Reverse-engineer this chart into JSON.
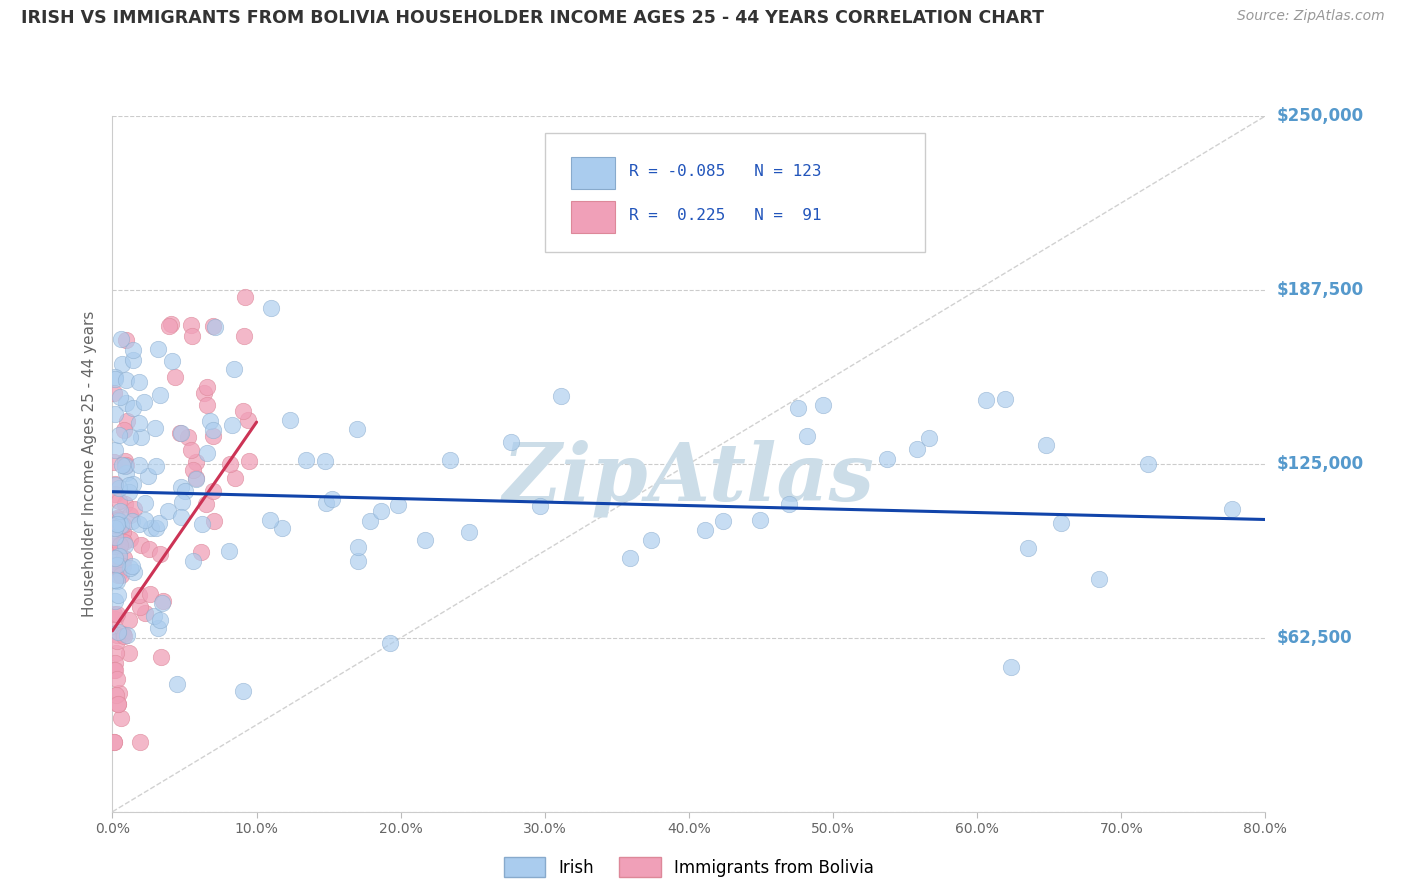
{
  "title": "IRISH VS IMMIGRANTS FROM BOLIVIA HOUSEHOLDER INCOME AGES 25 - 44 YEARS CORRELATION CHART",
  "source": "Source: ZipAtlas.com",
  "ylabel": "Householder Income Ages 25 - 44 years",
  "ytick_values": [
    0,
    62500,
    125000,
    187500,
    250000
  ],
  "ytick_labels": [
    "",
    "$62,500",
    "$125,000",
    "$187,500",
    "$250,000"
  ],
  "ylim": [
    0,
    250000
  ],
  "xlim": [
    0.0,
    0.8
  ],
  "irish_color": "#aaccee",
  "bolivia_color": "#f0a0b8",
  "irish_edge": "#88aacc",
  "bolivia_edge": "#dd8899",
  "regression_irish_color": "#1144aa",
  "regression_bolivia_color": "#cc3355",
  "background_color": "#ffffff",
  "plot_bg_color": "#ffffff",
  "grid_color": "#cccccc",
  "watermark": "ZipAtlas",
  "watermark_color": "#ccdde8",
  "yaxis_label_color": "#5599cc",
  "legend_text_color": "#2255bb",
  "legend_r1": "R = -0.085",
  "legend_n1": "N = 123",
  "legend_r2": "R =  0.225",
  "legend_n2": "N =  91"
}
